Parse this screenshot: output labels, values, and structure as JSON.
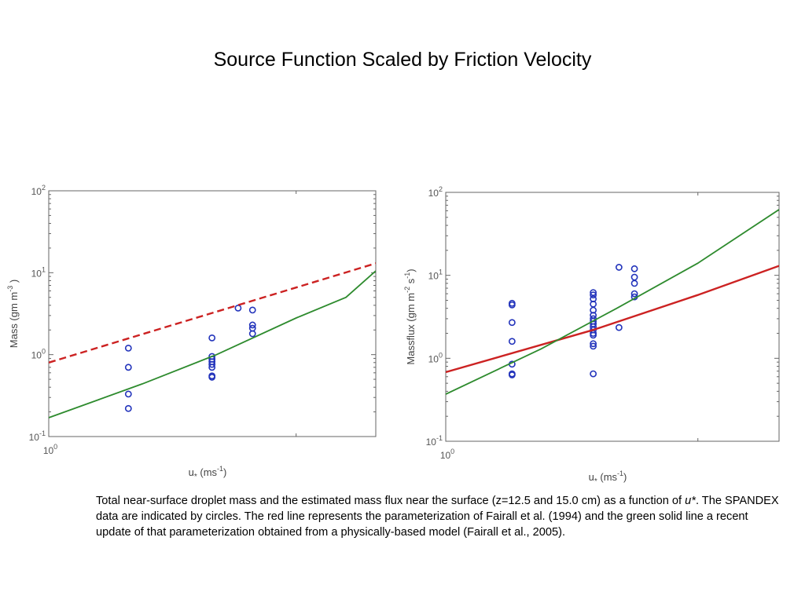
{
  "slide": {
    "title": "Source Function Scaled by Friction Velocity",
    "caption": {
      "part1": "Total near-surface droplet mass and the estimated mass flux near the surface (z=12.5 and 15.0 cm) as a function of ",
      "italic": "u*",
      "part2": ".  The SPANDEX data are indicated by circles.  The red line represents the parameterization of Fairall et al. (1994) and the green solid line a recent update of that parameterization obtained from a physically-based model (Fairall et al., 2005)."
    }
  },
  "colors": {
    "red_line": "#cc2222",
    "green_line": "#2e8b2e",
    "circles": "#2233bb",
    "axes": "#666666"
  },
  "chart_data": [
    {
      "type": "scatter",
      "title": "",
      "xlabel": "u* (ms-1)",
      "ylabel": "Mass (gm m-3 )",
      "xscale": "log",
      "yscale": "log",
      "xlim": [
        1.0,
        2.5
      ],
      "ylim": [
        0.1,
        100
      ],
      "x_ticks": [
        "10^0"
      ],
      "y_ticks": [
        "10^-1",
        "10^0",
        "10^1",
        "10^2"
      ],
      "grid": false,
      "series": [
        {
          "style": "circles",
          "color": "#2233bb",
          "points": [
            [
              1.25,
              1.2
            ],
            [
              1.25,
              0.7
            ],
            [
              1.25,
              0.33
            ],
            [
              1.25,
              0.22
            ],
            [
              1.58,
              1.6
            ],
            [
              1.58,
              0.95
            ],
            [
              1.58,
              0.88
            ],
            [
              1.58,
              0.82
            ],
            [
              1.58,
              0.76
            ],
            [
              1.58,
              0.7
            ],
            [
              1.58,
              0.55
            ],
            [
              1.58,
              0.53
            ],
            [
              1.7,
              3.7
            ],
            [
              1.77,
              3.5
            ],
            [
              1.77,
              2.3
            ],
            [
              1.77,
              2.1
            ],
            [
              1.77,
              1.8
            ]
          ]
        },
        {
          "style": "dashed",
          "color": "#cc2222",
          "points": [
            [
              1.0,
              0.8
            ],
            [
              2.5,
              13
            ]
          ]
        },
        {
          "style": "solid",
          "color": "#2e8b2e",
          "points": [
            [
              1.0,
              0.17
            ],
            [
              1.3,
              0.44
            ],
            [
              1.6,
              1.0
            ],
            [
              2.0,
              2.8
            ],
            [
              2.3,
              5.0
            ],
            [
              2.5,
              10.5
            ]
          ]
        }
      ]
    },
    {
      "type": "scatter",
      "title": "",
      "xlabel": "u* (ms-1)",
      "ylabel": "Massflux (gm m-2 s-1)",
      "xscale": "log",
      "yscale": "log",
      "xlim": [
        1.0,
        2.5
      ],
      "ylim": [
        0.1,
        100
      ],
      "x_ticks": [
        "10^0"
      ],
      "y_ticks": [
        "10^-1",
        "10^0",
        "10^1",
        "10^2"
      ],
      "grid": false,
      "series": [
        {
          "style": "circles",
          "color": "#2233bb",
          "points": [
            [
              1.2,
              4.6
            ],
            [
              1.2,
              4.4
            ],
            [
              1.2,
              2.7
            ],
            [
              1.2,
              1.6
            ],
            [
              1.2,
              0.85
            ],
            [
              1.2,
              0.65
            ],
            [
              1.2,
              0.63
            ],
            [
              1.5,
              6.2
            ],
            [
              1.5,
              5.8
            ],
            [
              1.5,
              5.2
            ],
            [
              1.5,
              4.5
            ],
            [
              1.5,
              3.8
            ],
            [
              1.5,
              3.3
            ],
            [
              1.5,
              3.0
            ],
            [
              1.5,
              2.8
            ],
            [
              1.5,
              2.6
            ],
            [
              1.5,
              2.4
            ],
            [
              1.5,
              2.2
            ],
            [
              1.5,
              2.0
            ],
            [
              1.5,
              1.9
            ],
            [
              1.5,
              1.5
            ],
            [
              1.5,
              1.4
            ],
            [
              1.5,
              0.65
            ],
            [
              1.61,
              12.5
            ],
            [
              1.61,
              2.35
            ],
            [
              1.68,
              12.0
            ],
            [
              1.68,
              9.5
            ],
            [
              1.68,
              8.0
            ],
            [
              1.68,
              6.0
            ],
            [
              1.68,
              5.5
            ]
          ]
        },
        {
          "style": "solid",
          "color": "#cc2222",
          "points": [
            [
              1.0,
              0.68
            ],
            [
              1.5,
              2.2
            ],
            [
              2.0,
              5.8
            ],
            [
              2.5,
              13
            ]
          ]
        },
        {
          "style": "solid",
          "color": "#2e8b2e",
          "points": [
            [
              1.0,
              0.37
            ],
            [
              1.3,
              1.3
            ],
            [
              1.6,
              4.0
            ],
            [
              2.0,
              14
            ],
            [
              2.5,
              62
            ]
          ]
        }
      ]
    }
  ]
}
